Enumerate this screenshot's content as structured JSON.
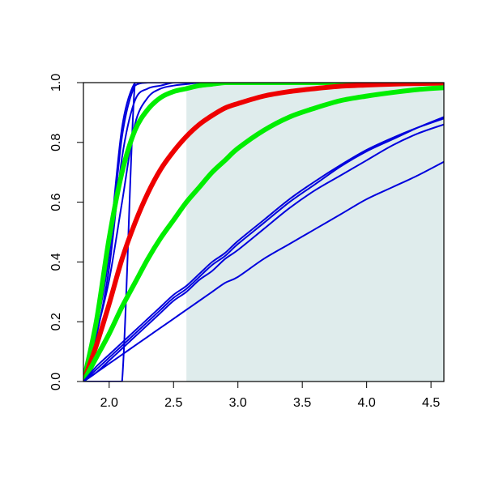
{
  "chart_data": {
    "type": "line",
    "title": "",
    "xlabel": "",
    "ylabel": "",
    "xlim": [
      1.8,
      4.6
    ],
    "ylim": [
      0.0,
      1.0
    ],
    "x_ticks": [
      2.0,
      2.5,
      3.0,
      3.5,
      4.0,
      4.5
    ],
    "y_ticks": [
      0.0,
      0.2,
      0.4,
      0.6,
      0.8,
      1.0
    ],
    "x_tick_labels": [
      "2.0",
      "2.5",
      "3.0",
      "3.5",
      "4.0",
      "4.5"
    ],
    "y_tick_labels": [
      "0.0",
      "0.2",
      "0.4",
      "0.6",
      "0.8",
      "1.0"
    ],
    "grid": false,
    "legend": "none",
    "shaded_region": {
      "x_from": 2.6,
      "x_to": 4.6,
      "y_from": 0.0,
      "y_to": 1.0,
      "color": "#dfecec"
    },
    "x": [
      1.8,
      1.9,
      2.0,
      2.1,
      2.2,
      2.3,
      2.4,
      2.5,
      2.6,
      2.7,
      2.8,
      2.9,
      3.0,
      3.2,
      3.4,
      3.6,
      3.8,
      4.0,
      4.2,
      4.4,
      4.6
    ],
    "series": [
      {
        "color": "#0000dd",
        "width": "thin",
        "values": [
          0.0,
          0.0,
          0.0,
          0.0,
          1.0,
          1.0,
          1.0,
          1.0,
          1.0,
          1.0,
          1.0,
          1.0,
          1.0,
          1.0,
          1.0,
          1.0,
          1.0,
          1.0,
          1.0,
          1.0,
          1.0
        ]
      },
      {
        "color": "#0000dd",
        "width": "thin",
        "values": [
          0.0,
          0.18,
          0.45,
          0.85,
          1.0,
          1.0,
          1.0,
          1.0,
          1.0,
          1.0,
          1.0,
          1.0,
          1.0,
          1.0,
          1.0,
          1.0,
          1.0,
          1.0,
          1.0,
          1.0,
          1.0
        ]
      },
      {
        "color": "#0000dd",
        "width": "thin",
        "values": [
          0.0,
          0.18,
          0.42,
          0.82,
          0.99,
          1.0,
          1.0,
          1.0,
          1.0,
          1.0,
          1.0,
          1.0,
          1.0,
          1.0,
          1.0,
          1.0,
          1.0,
          1.0,
          1.0,
          1.0,
          1.0
        ]
      },
      {
        "color": "#0000dd",
        "width": "thin",
        "values": [
          0.0,
          0.15,
          0.38,
          0.75,
          0.94,
          0.98,
          0.99,
          1.0,
          1.0,
          1.0,
          1.0,
          1.0,
          1.0,
          1.0,
          1.0,
          1.0,
          1.0,
          1.0,
          1.0,
          1.0,
          1.0
        ]
      },
      {
        "color": "#0000dd",
        "width": "thin",
        "values": [
          0.0,
          0.16,
          0.34,
          0.6,
          0.86,
          0.95,
          0.98,
          0.99,
          0.995,
          1.0,
          1.0,
          1.0,
          1.0,
          1.0,
          1.0,
          1.0,
          1.0,
          1.0,
          1.0,
          1.0,
          1.0
        ]
      },
      {
        "color": "#00ee00",
        "width": "thick",
        "values": [
          0.0,
          0.2,
          0.48,
          0.7,
          0.84,
          0.91,
          0.95,
          0.97,
          0.98,
          0.99,
          0.995,
          1.0,
          1.0,
          1.0,
          1.0,
          1.0,
          1.0,
          1.0,
          1.0,
          1.0,
          1.0
        ]
      },
      {
        "color": "#ee0000",
        "width": "thick",
        "values": [
          0.0,
          0.12,
          0.26,
          0.41,
          0.53,
          0.63,
          0.71,
          0.77,
          0.82,
          0.86,
          0.89,
          0.915,
          0.93,
          0.955,
          0.97,
          0.98,
          0.988,
          0.992,
          0.995,
          0.997,
          0.998
        ]
      },
      {
        "color": "#00ee00",
        "width": "thick",
        "values": [
          0.0,
          0.08,
          0.16,
          0.25,
          0.33,
          0.41,
          0.48,
          0.54,
          0.6,
          0.65,
          0.7,
          0.74,
          0.78,
          0.84,
          0.885,
          0.915,
          0.94,
          0.955,
          0.967,
          0.977,
          0.983
        ]
      },
      {
        "color": "#0000dd",
        "width": "thin",
        "values": [
          0.0,
          0.04,
          0.08,
          0.12,
          0.16,
          0.2,
          0.24,
          0.28,
          0.31,
          0.35,
          0.39,
          0.42,
          0.46,
          0.53,
          0.6,
          0.66,
          0.72,
          0.77,
          0.81,
          0.85,
          0.885
        ]
      },
      {
        "color": "#0000dd",
        "width": "thin",
        "values": [
          0.0,
          0.05,
          0.09,
          0.13,
          0.17,
          0.21,
          0.25,
          0.29,
          0.32,
          0.36,
          0.4,
          0.43,
          0.47,
          0.54,
          0.61,
          0.67,
          0.725,
          0.775,
          0.815,
          0.85,
          0.88
        ]
      },
      {
        "color": "#0000dd",
        "width": "thin",
        "values": [
          0.0,
          0.03,
          0.07,
          0.11,
          0.15,
          0.19,
          0.23,
          0.27,
          0.3,
          0.34,
          0.37,
          0.41,
          0.44,
          0.51,
          0.58,
          0.64,
          0.69,
          0.74,
          0.79,
          0.83,
          0.86
        ]
      },
      {
        "color": "#0000dd",
        "width": "thin",
        "values": [
          0.0,
          0.03,
          0.06,
          0.09,
          0.12,
          0.15,
          0.18,
          0.21,
          0.24,
          0.27,
          0.3,
          0.33,
          0.35,
          0.41,
          0.46,
          0.51,
          0.56,
          0.61,
          0.65,
          0.69,
          0.735
        ]
      }
    ]
  }
}
